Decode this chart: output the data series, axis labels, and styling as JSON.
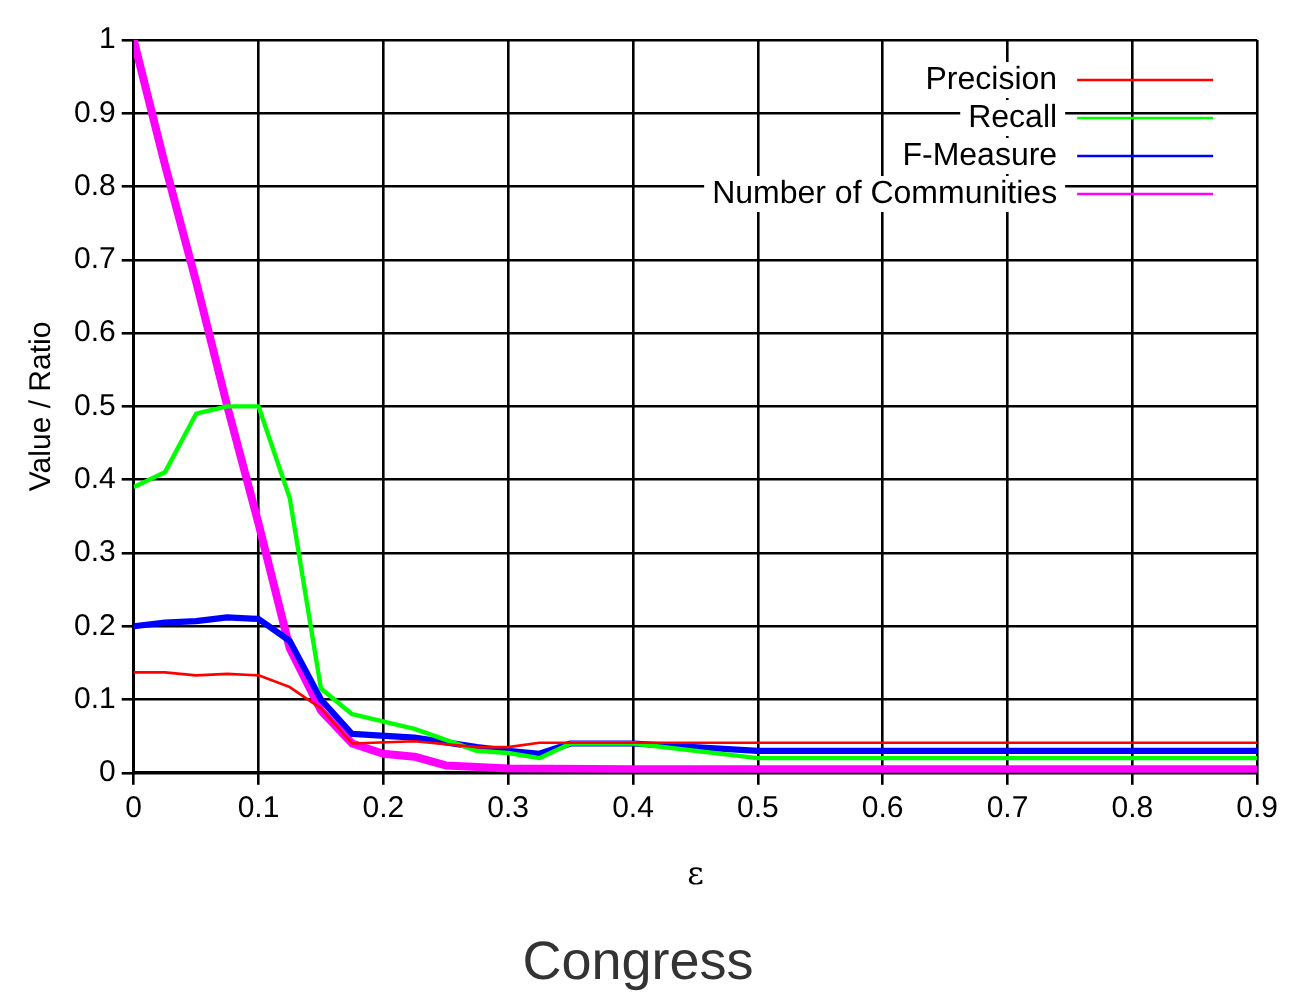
{
  "chart_data": {
    "type": "line",
    "title": "Congress",
    "xlabel": "ε",
    "ylabel": "Value / Ratio",
    "xlim": [
      0,
      0.9
    ],
    "xticks": [
      0,
      0.1,
      0.2,
      0.3,
      0.4,
      0.5,
      0.6,
      0.7,
      0.8,
      0.9
    ],
    "ylim": [
      0,
      1
    ],
    "yticks": [
      0,
      0.1,
      0.2,
      0.3,
      0.4,
      0.5,
      0.6,
      0.7,
      0.8,
      0.9,
      1
    ],
    "grid": true,
    "legend": "top right",
    "marker": "none",
    "line_style": "solid",
    "series": [
      {
        "name": "Precision",
        "color": "#ff0000",
        "x": [
          0,
          0.025,
          0.05,
          0.075,
          0.1,
          0.125,
          0.15,
          0.175,
          0.225,
          0.275,
          0.3,
          0.325,
          0.35,
          0.4,
          0.5,
          0.6,
          0.7,
          0.8,
          0.9
        ],
        "values": [
          0.137,
          0.137,
          0.133,
          0.135,
          0.133,
          0.117,
          0.088,
          0.04,
          0.043,
          0.035,
          0.035,
          0.041,
          0.041,
          0.041,
          0.041,
          0.041,
          0.041,
          0.041,
          0.041
        ]
      },
      {
        "name": "Recall",
        "color": "#00ff00",
        "x": [
          0,
          0.025,
          0.05,
          0.075,
          0.1,
          0.125,
          0.15,
          0.175,
          0.225,
          0.275,
          0.3,
          0.325,
          0.35,
          0.4,
          0.5,
          0.6,
          0.7,
          0.8,
          0.9
        ],
        "values": [
          0.39,
          0.41,
          0.49,
          0.5,
          0.5,
          0.375,
          0.115,
          0.08,
          0.06,
          0.03,
          0.027,
          0.02,
          0.04,
          0.04,
          0.02,
          0.02,
          0.02,
          0.02,
          0.02
        ]
      },
      {
        "name": "F-Measure",
        "color": "#0000ff",
        "x": [
          0,
          0.025,
          0.05,
          0.075,
          0.1,
          0.125,
          0.15,
          0.175,
          0.225,
          0.275,
          0.3,
          0.325,
          0.35,
          0.4,
          0.5,
          0.6,
          0.7,
          0.8,
          0.9
        ],
        "values": [
          0.2,
          0.205,
          0.207,
          0.212,
          0.21,
          0.18,
          0.1,
          0.053,
          0.048,
          0.035,
          0.03,
          0.026,
          0.04,
          0.04,
          0.03,
          0.03,
          0.03,
          0.03,
          0.03
        ]
      },
      {
        "name": "Number of Communities",
        "color": "#ff00ff",
        "x": [
          0,
          0.025,
          0.05,
          0.075,
          0.1,
          0.125,
          0.15,
          0.175,
          0.2,
          0.225,
          0.25,
          0.3,
          0.4,
          0.5,
          0.6,
          0.7,
          0.8,
          0.9
        ],
        "values": [
          1,
          0.83,
          0.67,
          0.5,
          0.34,
          0.17,
          0.085,
          0.04,
          0.026,
          0.022,
          0.01,
          0.006,
          0.005,
          0.005,
          0.005,
          0.005,
          0.005,
          0.005
        ]
      }
    ]
  }
}
